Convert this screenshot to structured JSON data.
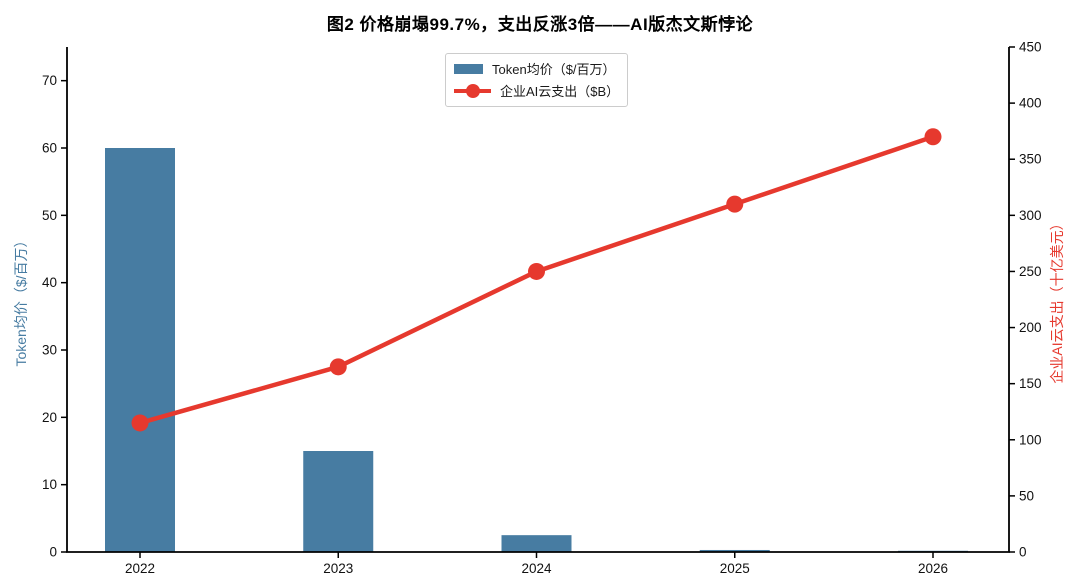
{
  "chart_data": {
    "type": "combo",
    "title": "图2 价格崩塌99.7%，支出反涨3倍——AI版杰文斯悖论",
    "categories": [
      "2022",
      "2023",
      "2024",
      "2025",
      "2026"
    ],
    "series": [
      {
        "name": "Token均价（$/百万）",
        "type": "bar",
        "y_axis": "left",
        "color": "#477CA2",
        "values": [
          60,
          15,
          2.5,
          0.3,
          0.18
        ]
      },
      {
        "name": "企业AI云支出（$B）",
        "type": "line",
        "y_axis": "right",
        "color": "#E6392E",
        "marker": "circle",
        "values": [
          115,
          165,
          250,
          310,
          370
        ]
      }
    ],
    "left_axis": {
      "label": "Token均价（$/百万）",
      "color": "#477CA2",
      "range": [
        0,
        75
      ],
      "ticks": [
        0,
        10,
        20,
        30,
        40,
        50,
        60,
        70
      ]
    },
    "right_axis": {
      "label": "企业AI云支出（十亿美元）",
      "color": "#E6392E",
      "range": [
        0,
        450
      ],
      "ticks": [
        0,
        50,
        100,
        150,
        200,
        250,
        300,
        350,
        400,
        450
      ]
    },
    "legend": {
      "position": "top-center",
      "entries": [
        "Token均价（$/百万）",
        "企业AI云支出（$B）"
      ]
    },
    "grid": false,
    "background": "#FFFFFF",
    "tick_color": "#111111"
  }
}
